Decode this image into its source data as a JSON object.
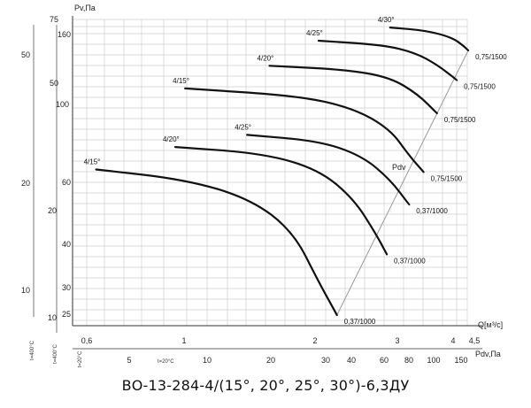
{
  "chart_data": {
    "type": "line",
    "title": "ВО-13-284-4/(15°, 20°, 25°, 30°)-6,3ДУ",
    "ylabel": "Pv,Па",
    "xlabel_flow": "Q[м³/с]",
    "xlabel_pdv": "Pdv,Па",
    "pdv_line_label": "Pdv",
    "y_axes": {
      "pv_ticks": [
        "75",
        "160",
        "50",
        "100",
        "60",
        "20",
        "40",
        "30",
        "25",
        "10"
      ],
      "left_ticks": [
        "50",
        "20",
        "10"
      ],
      "side_labels": [
        "t=400°C",
        "t=400°C",
        "t=20°C"
      ]
    },
    "x_axes": {
      "flow_ticks": [
        "0,6",
        "1",
        "2",
        "3",
        "4",
        "4,5"
      ],
      "pdv_ticks": [
        "5",
        "10",
        "20",
        "30",
        "40",
        "60",
        "80",
        "100",
        "150"
      ],
      "pdv_side_label": "t=20°C"
    },
    "series": [
      {
        "name": "4/15°",
        "end_label": "0,37/1000",
        "points": [
          [
            0.63,
            64
          ],
          [
            1.0,
            60
          ],
          [
            1.4,
            53
          ],
          [
            1.75,
            43
          ],
          [
            2.0,
            31
          ],
          [
            2.2,
            25
          ]
        ]
      },
      {
        "name": "4/20°",
        "end_label": "0,37/1000",
        "points": [
          [
            0.95,
            74
          ],
          [
            1.5,
            71
          ],
          [
            2.0,
            64
          ],
          [
            2.4,
            53
          ],
          [
            2.7,
            42
          ],
          [
            2.85,
            37
          ]
        ]
      },
      {
        "name": "4/25°",
        "end_label": "0,37/1000",
        "points": [
          [
            1.38,
            80
          ],
          [
            2.0,
            77
          ],
          [
            2.5,
            70
          ],
          [
            2.9,
            60
          ],
          [
            3.2,
            51
          ]
        ]
      },
      {
        "name": "4/15°",
        "end_label": "0,75/1500",
        "points": [
          [
            1.0,
            108
          ],
          [
            1.8,
            103
          ],
          [
            2.4,
            95
          ],
          [
            2.9,
            83
          ],
          [
            3.2,
            70
          ],
          [
            3.45,
            63
          ]
        ]
      },
      {
        "name": "4/20°",
        "end_label": "0,75/1500",
        "points": [
          [
            1.55,
            125
          ],
          [
            2.3,
            122
          ],
          [
            2.9,
            116
          ],
          [
            3.35,
            104
          ],
          [
            3.7,
            92
          ]
        ]
      },
      {
        "name": "4/25°",
        "end_label": "0,75/1500",
        "points": [
          [
            2.0,
            147
          ],
          [
            2.8,
            143
          ],
          [
            3.3,
            136
          ],
          [
            3.7,
            126
          ],
          [
            4.1,
            114
          ]
        ]
      },
      {
        "name": "4/30°",
        "end_label": "0,75/1500",
        "points": [
          [
            2.9,
            160
          ],
          [
            3.5,
            157
          ],
          [
            4.0,
            150
          ],
          [
            4.25,
            142
          ],
          [
            4.35,
            138
          ]
        ]
      }
    ],
    "pdv_line": [
      [
        2.2,
        25
      ],
      [
        4.35,
        138
      ]
    ],
    "grid": true,
    "legend": "none"
  }
}
